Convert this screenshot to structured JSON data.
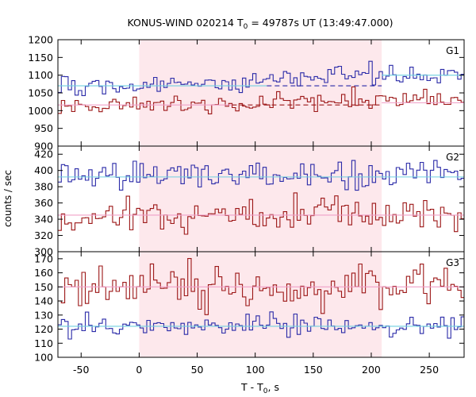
{
  "title_main": "KONUS-WIND 020214 T",
  "title_sub": "0",
  "title_rest": " = 49787s UT (13:49:47.000)",
  "ylabel": "counts / sec",
  "xlabel_main": "T - T",
  "xlabel_sub": "0",
  "xlabel_rest": ", s",
  "chart_data": {
    "type": "line",
    "step": true,
    "bin_width": 2.944,
    "xlim": [
      -70,
      280
    ],
    "xticks": [
      -50,
      0,
      50,
      100,
      150,
      200,
      250
    ],
    "shaded_region": {
      "x": [
        0,
        209
      ],
      "color": "#fde8ec"
    },
    "colors": {
      "blue": "#2a2aa8",
      "red": "#9c1616",
      "background_fit": "#6fd0e0",
      "fit_pink": "#f0a0c8"
    },
    "panels": [
      {
        "label": "G1",
        "ylim": [
          900,
          1200
        ],
        "yticks": [
          900,
          950,
          1000,
          1050,
          1100,
          1150,
          1200
        ],
        "series": [
          {
            "color": "#2a2aa8",
            "mean": 1072,
            "noise": 14,
            "x_start": -70,
            "x_end": 280,
            "trend": [
              [
                -70,
                1070
              ],
              [
                110,
                1080
              ],
              [
                120,
                1095
              ],
              [
                200,
                1110
              ],
              [
                280,
                1092
              ]
            ],
            "fits": [
              {
                "x": [
                  -70,
                  110
                ],
                "y": 1070,
                "color": "#6fd0e0",
                "dash": false
              },
              {
                "x": [
                  110,
                  209
                ],
                "y": 1070,
                "color": "#2a2aa8",
                "dash": true
              },
              {
                "x": [
                  209,
                  280
                ],
                "y": 1100,
                "color": "#6fd0e0",
                "dash": false
              }
            ]
          },
          {
            "color": "#9c1616",
            "mean": 1020,
            "noise": 14,
            "x_start": -70,
            "x_end": 280,
            "trend": [
              [
                -70,
                1015
              ],
              [
                100,
                1022
              ],
              [
                200,
                1032
              ],
              [
                280,
                1022
              ]
            ],
            "fits": [
              {
                "x": [
                  -70,
                  80
                ],
                "y": 1016,
                "color": "#f0a0c8",
                "dash": false
              },
              {
                "x": [
                  80,
                  209
                ],
                "y": 1016,
                "color": "#9c1616",
                "dash": true
              },
              {
                "x": [
                  209,
                  280
                ],
                "y": 1022,
                "color": "#f0a0c8",
                "dash": false
              }
            ]
          }
        ]
      },
      {
        "label": "G2",
        "ylim": [
          300,
          430
        ],
        "yticks": [
          300,
          320,
          340,
          360,
          380,
          400,
          420
        ],
        "series": [
          {
            "color": "#2a2aa8",
            "mean": 393,
            "noise": 10,
            "x_start": -70,
            "x_end": 280,
            "trend": [
              [
                -70,
                393
              ],
              [
                280,
                393
              ]
            ],
            "fits": [
              {
                "x": [
                  -70,
                  280
                ],
                "y": 392,
                "color": "#6fd0e0",
                "dash": false
              }
            ]
          },
          {
            "color": "#9c1616",
            "mean": 345,
            "noise": 10,
            "x_start": -70,
            "x_end": 280,
            "trend": [
              [
                -70,
                345
              ],
              [
                280,
                345
              ]
            ],
            "fits": [
              {
                "x": [
                  -70,
                  280
                ],
                "y": 345,
                "color": "#f0a0c8",
                "dash": false
              }
            ]
          }
        ]
      },
      {
        "label": "G3",
        "ylim": [
          100,
          175
        ],
        "yticks": [
          100,
          110,
          120,
          130,
          140,
          150,
          160,
          170
        ],
        "series": [
          {
            "color": "#9c1616",
            "mean": 150,
            "noise": 8,
            "x_start": -70,
            "x_end": 280,
            "trend": [
              [
                -70,
                150
              ],
              [
                280,
                150
              ]
            ],
            "fits": [
              {
                "x": [
                  -70,
                  280
                ],
                "y": 150,
                "color": "#f0a0c8",
                "dash": false
              }
            ]
          },
          {
            "color": "#2a2aa8",
            "mean": 122,
            "noise": 4,
            "x_start": -70,
            "x_end": 280,
            "trend": [
              [
                -70,
                122
              ],
              [
                280,
                122
              ]
            ],
            "fits": [
              {
                "x": [
                  -70,
                  280
                ],
                "y": 122,
                "color": "#6fd0e0",
                "dash": false
              }
            ]
          }
        ]
      }
    ]
  }
}
